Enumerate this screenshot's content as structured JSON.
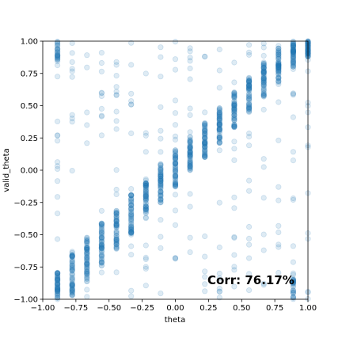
{
  "chart_data": {
    "type": "scatter",
    "xlabel": "theta",
    "ylabel": "valid_theta",
    "xlim": [
      -1.0,
      1.0
    ],
    "ylim": [
      -1.0,
      1.0
    ],
    "x_ticks": [
      -1.0,
      -0.75,
      -0.5,
      -0.25,
      0.0,
      0.25,
      0.5,
      0.75,
      1.0
    ],
    "x_tick_labels": [
      "−1.00",
      "−0.75",
      "−0.50",
      "−0.25",
      "0.00",
      "0.25",
      "0.50",
      "0.75",
      "1.00"
    ],
    "y_ticks": [
      1.0,
      0.75,
      0.5,
      0.25,
      0.0,
      -0.25,
      -0.5,
      -0.75,
      -1.0
    ],
    "y_tick_labels": [
      "1.00",
      "0.75",
      "0.50",
      "0.25",
      "0.00",
      "−0.25",
      "−0.50",
      "−0.75",
      "−1.00"
    ],
    "annotation": "Corr: 76.17%",
    "grid": false,
    "marker_color": "#1f77b4",
    "marker_alpha": 0.15,
    "series": [
      {
        "x_columns": [
          -0.889,
          -0.778,
          -0.667,
          -0.556,
          -0.444,
          -0.333,
          -0.222,
          -0.111,
          0.0,
          0.111,
          0.222,
          0.333,
          0.444,
          0.556,
          0.667,
          0.778,
          0.889,
          1.0
        ],
        "dense_y_ranges": [
          [
            -1.0,
            -0.78
          ],
          [
            -0.97,
            -0.63
          ],
          [
            -0.87,
            -0.52
          ],
          [
            -0.74,
            -0.41
          ],
          [
            -0.61,
            -0.3
          ],
          [
            -0.5,
            -0.18
          ],
          [
            -0.38,
            -0.06
          ],
          [
            -0.26,
            0.05
          ],
          [
            -0.13,
            0.16
          ],
          [
            0.0,
            0.26
          ],
          [
            0.1,
            0.37
          ],
          [
            0.21,
            0.49
          ],
          [
            0.33,
            0.61
          ],
          [
            0.45,
            0.73
          ],
          [
            0.57,
            0.84
          ],
          [
            0.68,
            0.95
          ],
          [
            0.8,
            1.0
          ],
          [
            0.88,
            1.0
          ]
        ],
        "wrap_top_cluster": {
          "x": -0.889,
          "y_range": [
            0.84,
            1.0
          ]
        },
        "wrap_bottom_cluster": {
          "x": 0.889,
          "y_range": [
            -1.0,
            -0.84
          ]
        }
      }
    ]
  }
}
